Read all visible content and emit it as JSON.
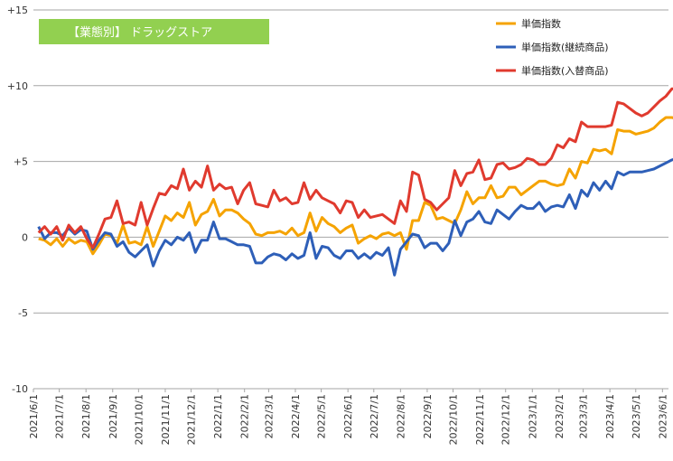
{
  "chart_data": {
    "type": "line",
    "title": "【業態別】 ドラッグストア",
    "title_box_color": "#92d050",
    "ylim": [
      -10,
      15
    ],
    "yticks": [
      15,
      10,
      5,
      0,
      -5,
      -10
    ],
    "ytick_labels": [
      "+15",
      "+10",
      "+5",
      "0",
      "-5",
      "-10"
    ],
    "xlim": [
      "2021-06-01",
      "2023-06-08"
    ],
    "xtick_labels": [
      "2021/6/1",
      "2021/7/1",
      "2021/8/1",
      "2021/9/1",
      "2021/10/1",
      "2021/11/1",
      "2021/12/1",
      "2022/1/1",
      "2022/2/1",
      "2022/3/1",
      "2022/4/1",
      "2022/5/1",
      "2022/6/1",
      "2022/7/1",
      "2022/8/1",
      "2022/9/1",
      "2022/10/1",
      "2022/11/1",
      "2022/12/1",
      "2023/1/1",
      "2023/2/1",
      "2023/3/1",
      "2023/4/1",
      "2023/5/1",
      "2023/6/1"
    ],
    "xtick_dates": [
      "2021-06-01",
      "2021-07-01",
      "2021-08-01",
      "2021-09-01",
      "2021-10-01",
      "2021-11-01",
      "2021-12-01",
      "2022-01-01",
      "2022-02-01",
      "2022-03-01",
      "2022-04-01",
      "2022-05-01",
      "2022-06-01",
      "2022-07-01",
      "2022-08-01",
      "2022-09-01",
      "2022-10-01",
      "2022-11-01",
      "2022-12-01",
      "2023-01-01",
      "2023-02-01",
      "2023-03-01",
      "2023-04-01",
      "2023-05-01",
      "2023-06-01"
    ],
    "grid": "horizontal",
    "legend_position": "top-right",
    "x_start": "2021-06-07",
    "x_step_days": 7,
    "series": [
      {
        "name": "単価指数",
        "color": "#f5a300",
        "values": [
          -0.1,
          -0.2,
          -0.5,
          -0.1,
          -0.6,
          -0.1,
          -0.4,
          -0.2,
          -0.3,
          -1.1,
          -0.5,
          0.2,
          0.1,
          -0.4,
          0.8,
          -0.4,
          -0.3,
          -0.5,
          0.7,
          -0.6,
          0.4,
          1.4,
          1.1,
          1.6,
          1.3,
          2.3,
          0.8,
          1.5,
          1.7,
          2.5,
          1.4,
          1.8,
          1.8,
          1.6,
          1.2,
          0.9,
          0.2,
          0.1,
          0.3,
          0.3,
          0.4,
          0.2,
          0.6,
          0.1,
          0.3,
          1.6,
          0.4,
          1.3,
          0.9,
          0.7,
          0.3,
          0.6,
          0.8,
          -0.4,
          -0.1,
          0.1,
          -0.1,
          0.2,
          0.3,
          0.1,
          0.3,
          -0.8,
          1.1,
          1.1,
          2.3,
          2.1,
          1.2,
          1.3,
          1.1,
          0.9,
          1.8,
          3.0,
          2.2,
          2.6,
          2.6,
          3.4,
          2.6,
          2.7,
          3.3,
          3.3,
          2.8,
          3.1,
          3.4,
          3.7,
          3.7,
          3.5,
          3.4,
          3.5,
          4.5,
          3.9,
          5.0,
          4.9,
          5.8,
          5.7,
          5.8,
          5.5,
          7.1,
          7.0,
          7.0,
          6.8,
          6.9,
          7.0,
          7.2,
          7.6,
          7.9,
          7.9,
          7.8,
          8.2
        ]
      },
      {
        "name": "単価指数(継続商品)",
        "color": "#2e5fb8",
        "values": [
          0.7,
          -0.1,
          0.3,
          0.3,
          0.1,
          0.6,
          0.2,
          0.5,
          0.4,
          -0.8,
          -0.2,
          0.3,
          0.2,
          -0.6,
          -0.3,
          -1.0,
          -1.3,
          -0.9,
          -0.5,
          -1.9,
          -0.9,
          -0.2,
          -0.5,
          0.0,
          -0.2,
          0.3,
          -1.0,
          -0.2,
          -0.2,
          1.0,
          -0.1,
          -0.1,
          -0.3,
          -0.5,
          -0.5,
          -0.6,
          -1.7,
          -1.7,
          -1.3,
          -1.1,
          -1.2,
          -1.5,
          -1.1,
          -1.4,
          -1.2,
          0.3,
          -1.4,
          -0.6,
          -0.7,
          -1.2,
          -1.4,
          -0.9,
          -0.9,
          -1.4,
          -1.1,
          -1.4,
          -1.0,
          -1.2,
          -0.7,
          -2.5,
          -0.8,
          -0.3,
          0.2,
          0.1,
          -0.7,
          -0.4,
          -0.4,
          -0.9,
          -0.4,
          1.1,
          0.1,
          1.0,
          1.2,
          1.7,
          1.0,
          0.9,
          1.8,
          1.5,
          1.2,
          1.7,
          2.1,
          1.9,
          1.9,
          2.3,
          1.7,
          2.0,
          2.1,
          2.0,
          2.8,
          1.9,
          3.1,
          2.7,
          3.6,
          3.1,
          3.7,
          3.2,
          4.3,
          4.1,
          4.3,
          4.3,
          4.3,
          4.4,
          4.5,
          4.7,
          4.9,
          5.1,
          5.2,
          5.4
        ]
      },
      {
        "name": "単価指数(入替商品)",
        "color": "#e03a2e",
        "values": [
          0.3,
          0.7,
          0.2,
          0.7,
          -0.2,
          0.8,
          0.3,
          0.7,
          -0.1,
          -0.7,
          0.2,
          1.2,
          1.3,
          2.4,
          0.9,
          1.0,
          0.8,
          2.3,
          0.8,
          1.9,
          2.9,
          2.8,
          3.4,
          3.2,
          4.5,
          3.1,
          3.7,
          3.3,
          4.7,
          3.1,
          3.5,
          3.2,
          3.3,
          2.2,
          3.1,
          3.6,
          2.2,
          2.1,
          2.0,
          3.1,
          2.4,
          2.6,
          2.2,
          2.3,
          3.6,
          2.5,
          3.1,
          2.6,
          2.4,
          2.2,
          1.6,
          2.4,
          2.3,
          1.3,
          1.8,
          1.3,
          1.4,
          1.5,
          1.2,
          0.9,
          2.4,
          1.7,
          4.3,
          4.1,
          2.5,
          2.3,
          1.8,
          2.2,
          2.6,
          4.4,
          3.4,
          4.2,
          4.3,
          5.1,
          3.8,
          3.9,
          4.8,
          4.9,
          4.5,
          4.6,
          4.8,
          5.2,
          5.1,
          4.8,
          4.8,
          5.2,
          6.1,
          5.9,
          6.5,
          6.3,
          7.6,
          7.3,
          7.3,
          7.3,
          7.3,
          7.4,
          8.9,
          8.8,
          8.5,
          8.2,
          8.0,
          8.2,
          8.6,
          9.0,
          9.3,
          9.8,
          9.8,
          9.6
        ]
      }
    ]
  }
}
